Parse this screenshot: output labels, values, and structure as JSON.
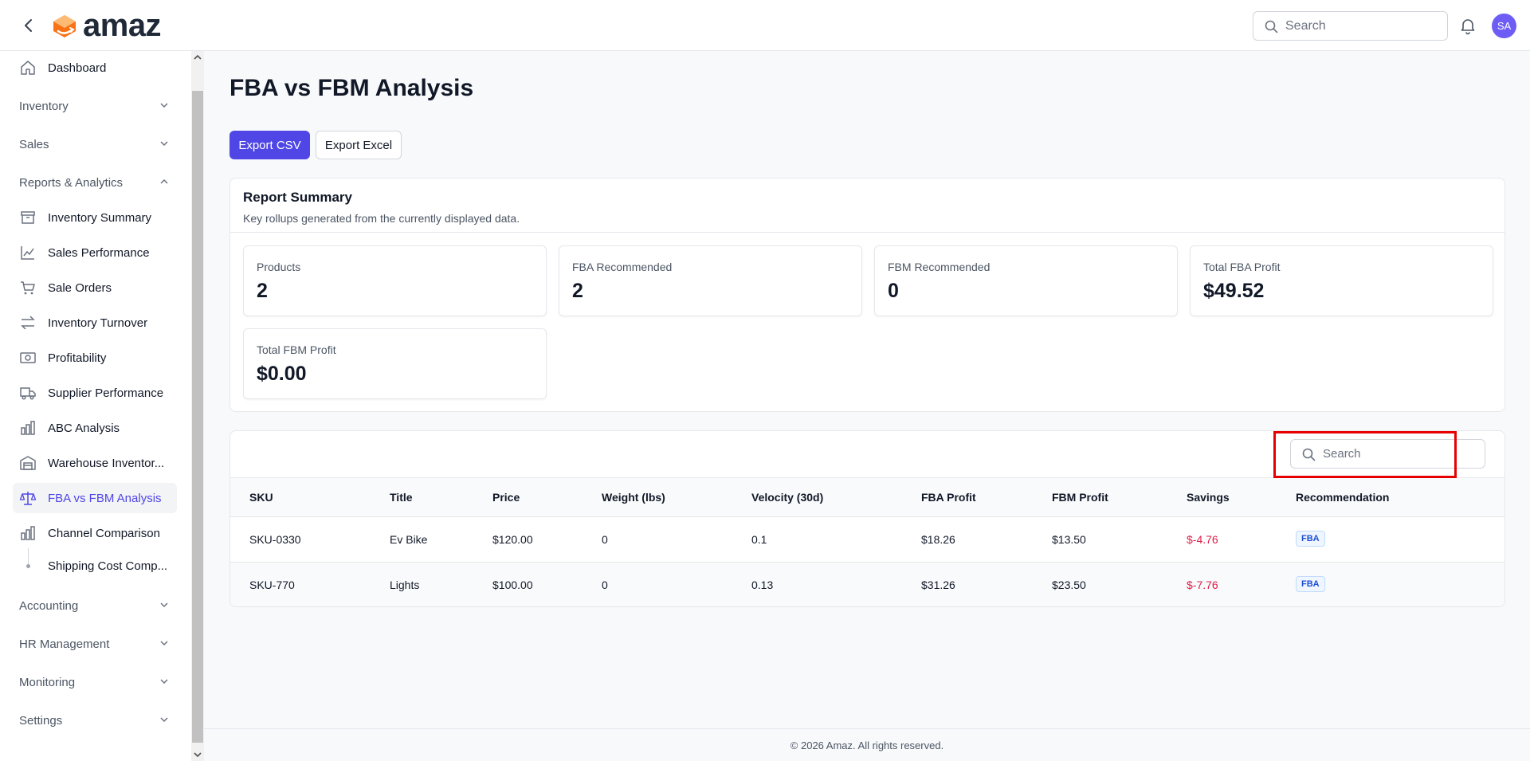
{
  "app": {
    "logo_text": "amaz",
    "avatar_initials": "SA"
  },
  "header": {
    "search_placeholder": "Search"
  },
  "sidebar": {
    "dashboard": "Dashboard",
    "groups": {
      "inventory": "Inventory",
      "sales": "Sales",
      "reports": "Reports & Analytics",
      "accounting": "Accounting",
      "hr": "HR Management",
      "monitoring": "Monitoring",
      "settings": "Settings"
    },
    "reports_items": [
      {
        "label": "Inventory Summary",
        "icon": "archive-icon"
      },
      {
        "label": "Sales Performance",
        "icon": "chart-line-icon"
      },
      {
        "label": "Sale Orders",
        "icon": "cart-icon"
      },
      {
        "label": "Inventory Turnover",
        "icon": "arrows-exchange-icon"
      },
      {
        "label": "Profitability",
        "icon": "cash-icon"
      },
      {
        "label": "Supplier Performance",
        "icon": "truck-icon"
      },
      {
        "label": "ABC Analysis",
        "icon": "bar-chart-icon"
      },
      {
        "label": "Warehouse Inventor...",
        "icon": "warehouse-icon"
      },
      {
        "label": "FBA vs FBM Analysis",
        "icon": "scale-icon"
      },
      {
        "label": "Channel Comparison",
        "icon": "bar-chart-icon"
      }
    ],
    "sub_item": "Shipping Cost Comp..."
  },
  "page": {
    "title": "FBA vs FBM Analysis",
    "export_csv": "Export CSV",
    "export_excel": "Export Excel"
  },
  "summary": {
    "title": "Report Summary",
    "subtitle": "Key rollups generated from the currently displayed data.",
    "stats": [
      {
        "label": "Products",
        "value": "2"
      },
      {
        "label": "FBA Recommended",
        "value": "2"
      },
      {
        "label": "FBM Recommended",
        "value": "0"
      },
      {
        "label": "Total FBA Profit",
        "value": "$49.52"
      },
      {
        "label": "Total FBM Profit",
        "value": "$0.00"
      }
    ]
  },
  "table": {
    "search_placeholder": "Search",
    "columns": [
      "SKU",
      "Title",
      "Price",
      "Weight (lbs)",
      "Velocity (30d)",
      "FBA Profit",
      "FBM Profit",
      "Savings",
      "Recommendation"
    ],
    "rows": [
      {
        "sku": "SKU-0330",
        "title": "Ev Bike",
        "price": "$120.00",
        "weight": "0",
        "velocity": "0.1",
        "fba_profit": "$18.26",
        "fbm_profit": "$13.50",
        "savings": "$-4.76",
        "recommendation": "FBA"
      },
      {
        "sku": "SKU-770",
        "title": "Lights",
        "price": "$100.00",
        "weight": "0",
        "velocity": "0.13",
        "fba_profit": "$31.26",
        "fbm_profit": "$23.50",
        "savings": "$-7.76",
        "recommendation": "FBA"
      }
    ]
  },
  "footer": {
    "text": "© 2026 Amaz. All rights reserved."
  },
  "colors": {
    "accent": "#4f46e5",
    "negative": "#e11d48",
    "avatar": "#6d5df5",
    "highlight": "#e60000"
  }
}
